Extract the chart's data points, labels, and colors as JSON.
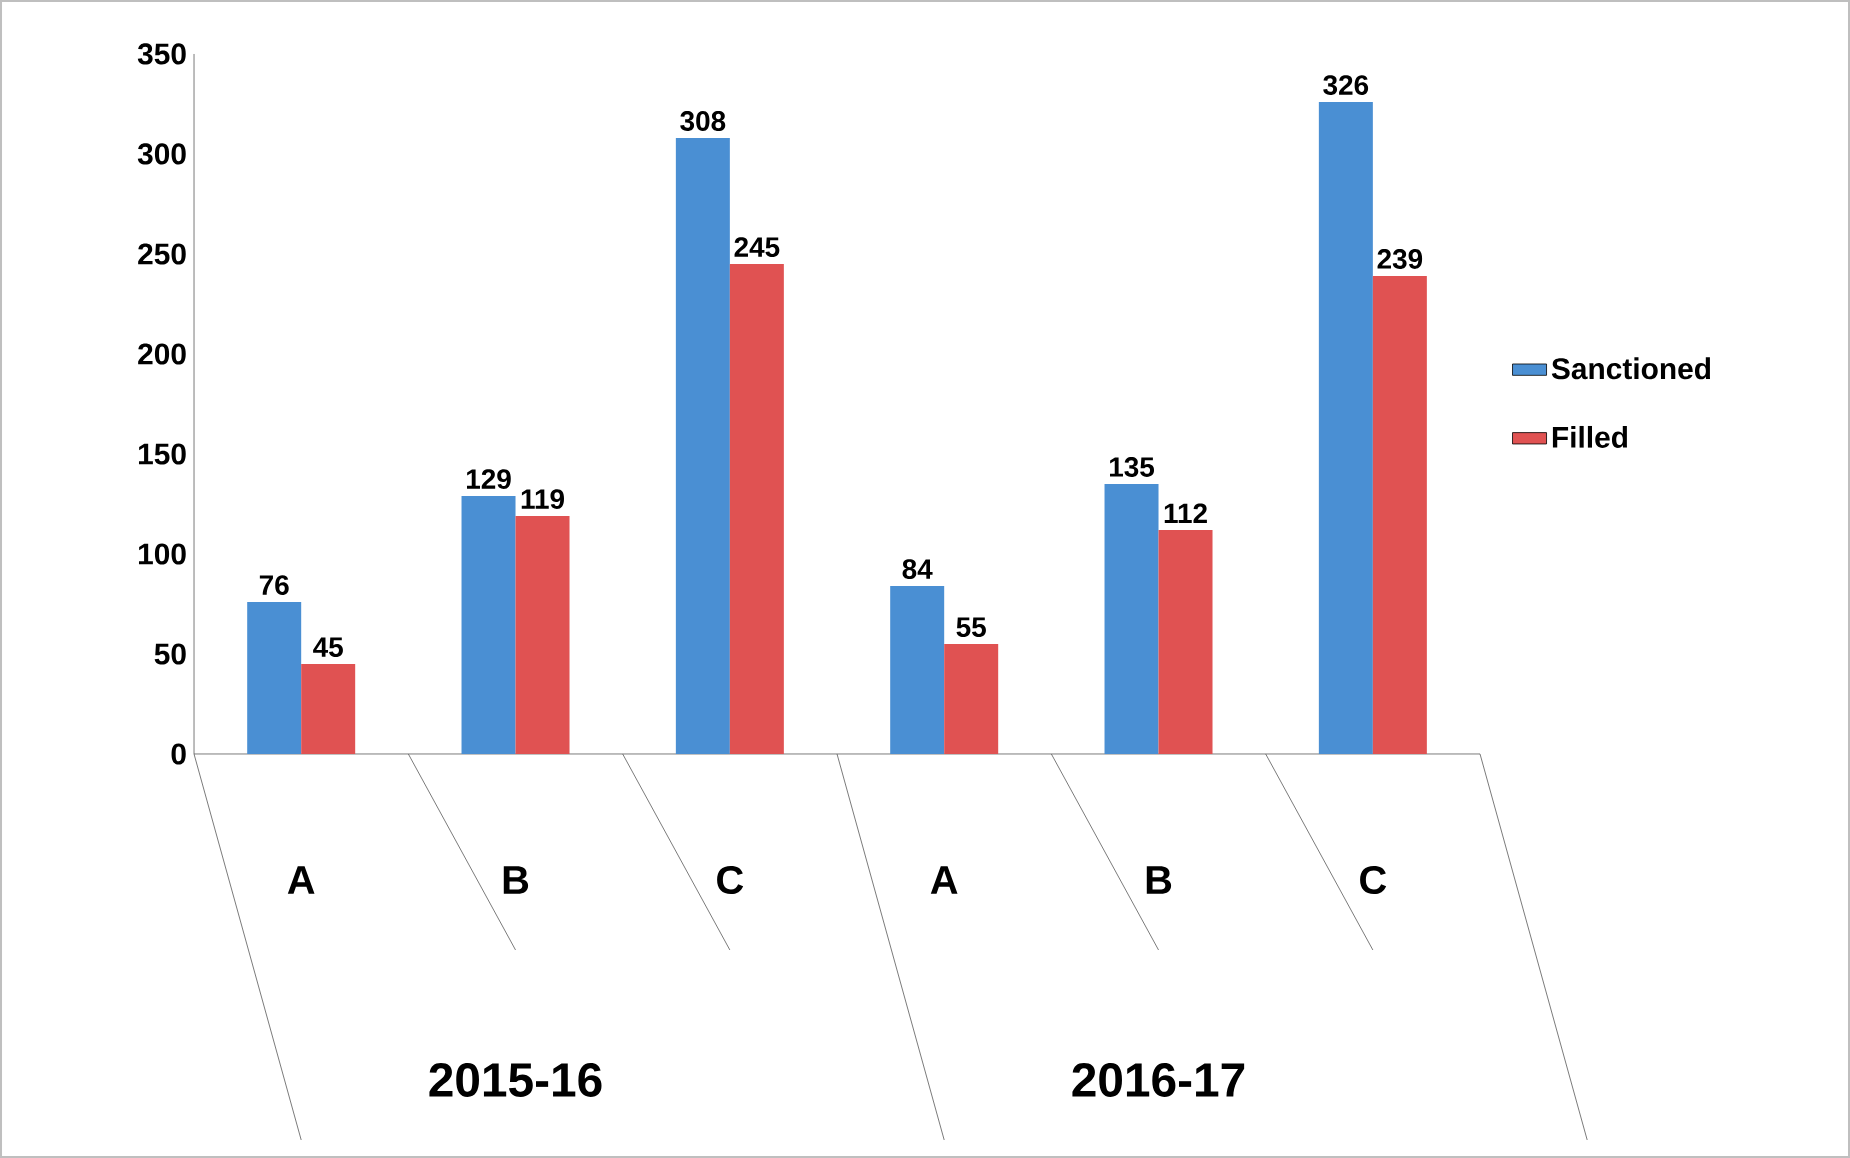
{
  "chart_data": {
    "type": "bar",
    "categories": [
      "A",
      "B",
      "C",
      "A",
      "B",
      "C"
    ],
    "annotations": [
      "2015-16",
      "2016-17"
    ],
    "series": [
      {
        "name": "Sanctioned",
        "color": "#4a8fd3",
        "values": [
          76,
          129,
          308,
          84,
          135,
          326
        ]
      },
      {
        "name": "Filled",
        "color": "#e05252",
        "values": [
          45,
          119,
          245,
          55,
          112,
          239
        ]
      }
    ],
    "ylim": [
      0,
      350
    ],
    "yticks": [
      0,
      50,
      100,
      150,
      200,
      250,
      300,
      350
    ],
    "data_labels": true,
    "legend": "right",
    "grid": false
  }
}
